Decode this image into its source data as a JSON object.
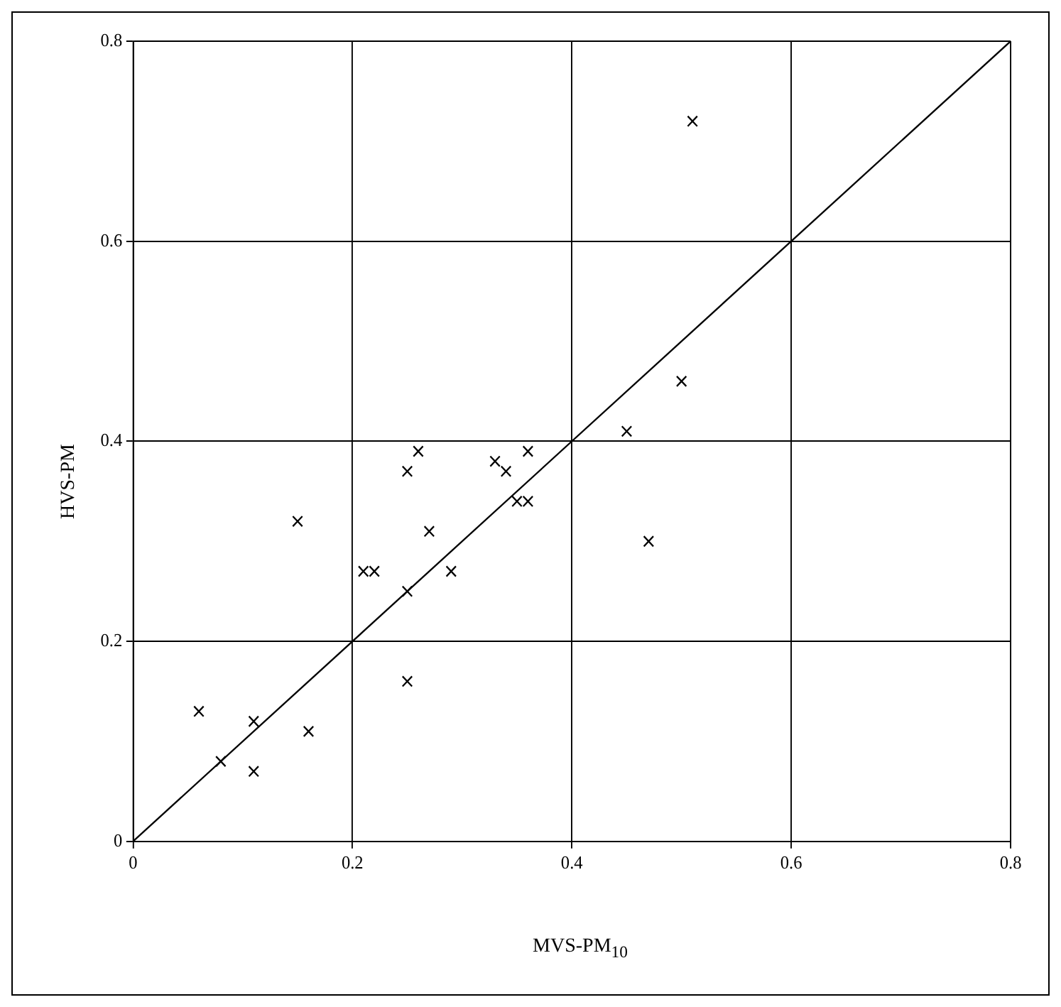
{
  "chart_data": {
    "type": "scatter",
    "xlabel": "MVS-PM$_{10}$",
    "ylabel": "HVS-PM",
    "x": [
      0.06,
      0.08,
      0.11,
      0.11,
      0.16,
      0.15,
      0.21,
      0.22,
      0.25,
      0.25,
      0.25,
      0.26,
      0.27,
      0.29,
      0.33,
      0.34,
      0.35,
      0.36,
      0.36,
      0.45,
      0.47,
      0.5,
      0.51
    ],
    "series": [
      {
        "color": "#000000",
        "marker": "cross",
        "values": [
          0.13,
          0.08,
          0.12,
          0.07,
          0.11,
          0.32,
          0.27,
          0.27,
          0.25,
          0.16,
          0.37,
          0.39,
          0.31,
          0.27,
          0.38,
          0.37,
          0.34,
          0.34,
          0.39,
          0.41,
          0.3,
          0.46,
          0.72
        ]
      },
      {
        "type": "line",
        "color": "#000000",
        "marker": "none",
        "x": [
          0,
          0.8
        ],
        "values": [
          0,
          0.8
        ]
      }
    ],
    "xlim": [
      0,
      0.8
    ],
    "ylim": [
      0,
      0.8
    ],
    "xticks": [
      0,
      0.2,
      0.4,
      0.6,
      0.8
    ],
    "yticks": [
      0,
      0.2,
      0.4,
      0.6,
      0.8
    ],
    "grid": true,
    "legend": false
  }
}
